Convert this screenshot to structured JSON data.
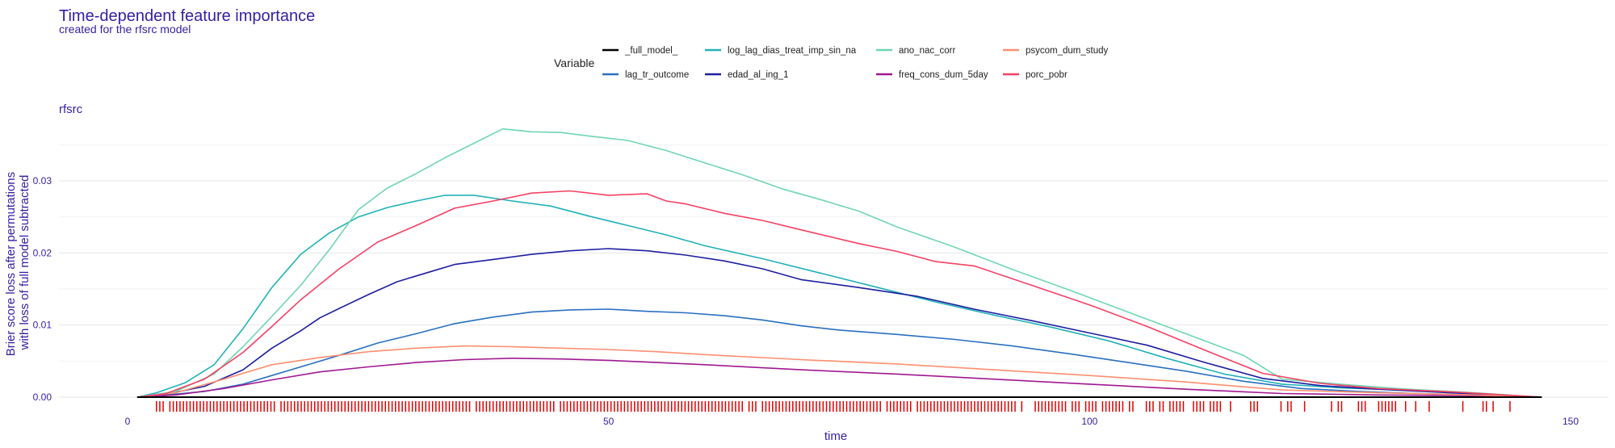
{
  "chart_data": {
    "type": "line",
    "title": "Time-dependent feature importance",
    "subtitle": "created for the rfsrc model",
    "facet_label": "rfsrc",
    "xlabel": "time",
    "ylabel_lines": [
      "Brier score loss after permutations",
      "with loss of full model subtracted"
    ],
    "xlim": [
      -2,
      155
    ],
    "ylim": [
      -0.0013,
      0.0385
    ],
    "x_ticks": [
      0,
      50,
      100,
      150
    ],
    "x_tick_labels": [
      "0",
      "50",
      "100",
      "150"
    ],
    "y_ticks": [
      0,
      0.01,
      0.02,
      0.03
    ],
    "y_tick_labels": [
      "0.00",
      "0.01",
      "0.02",
      "0.03"
    ],
    "grid": true,
    "legend_title": "Variable",
    "legend_position": "top",
    "rug": true,
    "rug_color": "#e00000",
    "series": [
      {
        "name": "_full_model_",
        "color": "#000000",
        "x": [
          1,
          147
        ],
        "y": [
          0,
          0
        ]
      },
      {
        "name": "lag_tr_outcome",
        "color": "#2a6fc0",
        "x": [
          1,
          4,
          8,
          12,
          15,
          18,
          22,
          26,
          30,
          34,
          38,
          42,
          46,
          50,
          54,
          58,
          62,
          66,
          70,
          74,
          80,
          86,
          92,
          98,
          104,
          110,
          116,
          122,
          128,
          134,
          140,
          147
        ],
        "y": [
          0,
          0.0003,
          0.0008,
          0.0018,
          0.003,
          0.0042,
          0.0058,
          0.0075,
          0.0088,
          0.0102,
          0.0111,
          0.0118,
          0.0121,
          0.0122,
          0.0119,
          0.0117,
          0.0113,
          0.0107,
          0.0099,
          0.0093,
          0.0087,
          0.008,
          0.0071,
          0.006,
          0.0048,
          0.0036,
          0.0022,
          0.0012,
          0.0008,
          0.0005,
          0.0003,
          0
        ]
      },
      {
        "name": "log_lag_dias_treat_imp_sin_na",
        "color": "#20b2b8",
        "x": [
          1,
          3,
          6,
          9,
          12,
          15,
          18,
          21,
          24,
          27,
          30,
          33,
          36,
          40,
          44,
          48,
          52,
          56,
          60,
          66,
          72,
          78,
          84,
          90,
          96,
          102,
          108,
          114,
          120,
          126,
          132,
          138,
          147
        ],
        "y": [
          0,
          0.0006,
          0.002,
          0.0045,
          0.0095,
          0.0152,
          0.0198,
          0.0228,
          0.025,
          0.0263,
          0.0272,
          0.028,
          0.028,
          0.0272,
          0.0265,
          0.0251,
          0.0238,
          0.0225,
          0.021,
          0.0192,
          0.0172,
          0.0152,
          0.0132,
          0.0114,
          0.0097,
          0.0078,
          0.0054,
          0.0032,
          0.0018,
          0.0013,
          0.001,
          0.0006,
          0
        ]
      },
      {
        "name": "edad_al_ing_1",
        "color": "#1e1ea0",
        "x": [
          1,
          4,
          8,
          12,
          15,
          18,
          20,
          22,
          25,
          28,
          31,
          34,
          38,
          42,
          46,
          50,
          54,
          58,
          62,
          66,
          70,
          76,
          82,
          88,
          94,
          100,
          106,
          112,
          118,
          124,
          130,
          136,
          147
        ],
        "y": [
          0,
          0.0004,
          0.0015,
          0.0038,
          0.0068,
          0.0092,
          0.011,
          0.0123,
          0.0142,
          0.016,
          0.0172,
          0.0184,
          0.0191,
          0.0198,
          0.0203,
          0.0206,
          0.0203,
          0.0197,
          0.0189,
          0.0178,
          0.0163,
          0.0152,
          0.014,
          0.0122,
          0.0106,
          0.0089,
          0.0072,
          0.0048,
          0.0026,
          0.0016,
          0.0011,
          0.0007,
          0
        ]
      },
      {
        "name": "ano_nac_corr",
        "color": "#6fd6b2",
        "x": [
          1,
          5,
          9,
          12,
          15,
          18,
          21,
          24,
          27,
          30,
          33,
          36,
          39,
          42,
          45,
          48,
          52,
          56,
          60,
          64,
          68,
          72,
          76,
          80,
          86,
          92,
          98,
          104,
          110,
          116,
          120,
          126,
          132,
          140,
          147
        ],
        "y": [
          0,
          0.0008,
          0.0032,
          0.007,
          0.0112,
          0.0155,
          0.0205,
          0.026,
          0.029,
          0.031,
          0.0332,
          0.0352,
          0.0372,
          0.0368,
          0.0367,
          0.0362,
          0.0356,
          0.0342,
          0.0325,
          0.0308,
          0.0289,
          0.0274,
          0.0258,
          0.0236,
          0.0208,
          0.0177,
          0.0148,
          0.0118,
          0.0088,
          0.0058,
          0.0025,
          0.0018,
          0.0012,
          0.0006,
          0
        ]
      },
      {
        "name": "freq_cons_dum_5day",
        "color": "#a01890",
        "x": [
          1,
          5,
          10,
          15,
          20,
          25,
          30,
          35,
          40,
          45,
          50,
          55,
          60,
          70,
          80,
          90,
          100,
          110,
          120,
          130,
          140,
          147
        ],
        "y": [
          0,
          0.0003,
          0.0012,
          0.0024,
          0.0035,
          0.0042,
          0.0048,
          0.0052,
          0.0054,
          0.0053,
          0.0051,
          0.0048,
          0.0045,
          0.0038,
          0.0032,
          0.0025,
          0.0018,
          0.0011,
          0.0005,
          0.0003,
          0.0002,
          0
        ]
      },
      {
        "name": "psycom_dum_study",
        "color": "#ff8f70",
        "x": [
          1,
          5,
          10,
          15,
          20,
          25,
          30,
          35,
          40,
          45,
          50,
          55,
          60,
          70,
          80,
          90,
          100,
          110,
          120,
          130,
          140,
          147
        ],
        "y": [
          0,
          0.0006,
          0.0025,
          0.0045,
          0.0055,
          0.0063,
          0.0068,
          0.0071,
          0.007,
          0.0068,
          0.0066,
          0.0063,
          0.0059,
          0.0052,
          0.0046,
          0.0038,
          0.003,
          0.0021,
          0.001,
          0.0006,
          0.0003,
          0
        ]
      },
      {
        "name": "porc_pobr",
        "color": "#f54063",
        "x": [
          1,
          4,
          8,
          12,
          15,
          18,
          22,
          26,
          30,
          34,
          38,
          42,
          46,
          50,
          54,
          56,
          58,
          62,
          66,
          70,
          76,
          80,
          84,
          88,
          94,
          100,
          106,
          112,
          118,
          124,
          130,
          138,
          147
        ],
        "y": [
          0,
          0.0005,
          0.0025,
          0.0062,
          0.0098,
          0.0135,
          0.0178,
          0.0215,
          0.0238,
          0.0262,
          0.0272,
          0.0283,
          0.0286,
          0.028,
          0.0282,
          0.0272,
          0.0268,
          0.0255,
          0.0245,
          0.0232,
          0.0213,
          0.0202,
          0.0188,
          0.0182,
          0.0155,
          0.0128,
          0.0098,
          0.0065,
          0.0033,
          0.0019,
          0.0012,
          0.0007,
          0
        ]
      }
    ]
  }
}
